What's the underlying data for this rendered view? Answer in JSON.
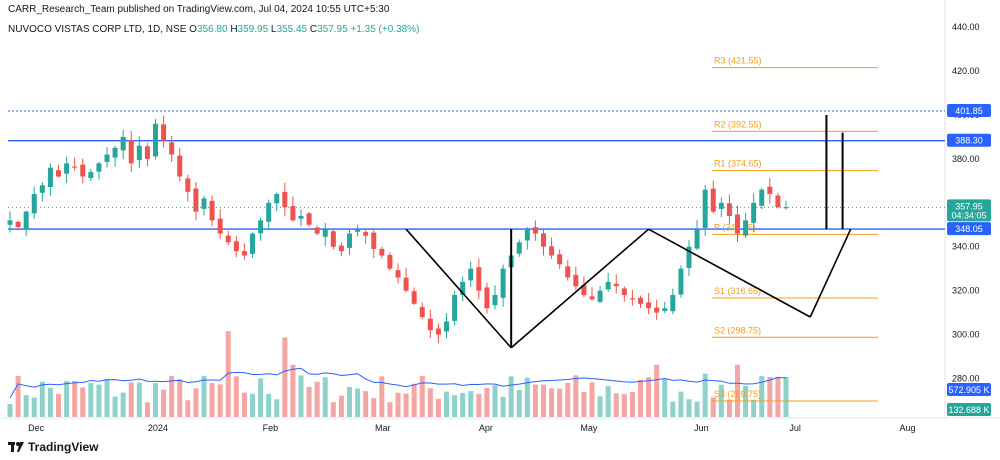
{
  "header": {
    "published": "CARR_Research_Team published on TradingView.com, Jul 04, 2024 10:55 UTC+5:30",
    "symbol": "NUVOCO VISTAS CORP LTD, 1D, NSE",
    "o_label": "O",
    "o_value": "356.80",
    "h_label": "H",
    "h_value": "359.95",
    "l_label": "L",
    "l_value": "355.45",
    "c_label": "C",
    "c_value": "357.95",
    "change": "+1.35 (+0.38%)"
  },
  "footer": {
    "brand": "TradingView"
  },
  "colors": {
    "up": "#26a69a",
    "down": "#ef5350",
    "vol_up": "#8fd2cb",
    "vol_down": "#f4a6a4",
    "blue": "#2962ff",
    "orange": "#f59c1a",
    "ma": "#2962ff"
  },
  "chart_data": {
    "type": "candlestick",
    "y_axis": {
      "ticks": [
        440,
        420,
        400,
        380,
        360,
        340,
        320,
        300,
        280
      ],
      "range": [
        262,
        446
      ]
    },
    "x_axis": {
      "labels": [
        {
          "text": "Dec",
          "x": 0.03
        },
        {
          "text": "2024",
          "x": 0.16
        },
        {
          "text": "Feb",
          "x": 0.28
        },
        {
          "text": "Mar",
          "x": 0.4
        },
        {
          "text": "Apr",
          "x": 0.51
        },
        {
          "text": "May",
          "x": 0.62
        },
        {
          "text": "Jun",
          "x": 0.74
        },
        {
          "text": "Jul",
          "x": 0.84
        },
        {
          "text": "Aug",
          "x": 0.96
        }
      ]
    },
    "price_path": [
      352,
      349,
      356,
      364,
      368,
      376,
      372,
      378,
      376,
      372,
      374,
      378,
      382,
      385,
      390,
      378,
      386,
      380,
      396,
      388,
      382,
      372,
      365,
      356,
      362,
      352,
      346,
      342,
      338,
      336,
      346,
      352,
      360,
      364,
      358,
      352,
      354,
      350,
      346,
      348,
      340,
      338,
      346,
      348,
      345,
      339,
      336,
      330,
      326,
      320,
      314,
      308,
      302,
      300,
      306,
      318,
      324,
      330,
      320,
      312,
      318,
      330,
      336,
      342,
      348,
      346,
      340,
      336,
      332,
      326,
      322,
      318,
      316,
      320,
      324,
      322,
      318,
      316,
      314,
      312,
      310,
      312,
      318,
      330,
      340,
      348,
      366,
      356,
      360,
      354,
      346,
      352,
      360,
      366,
      364,
      358,
      358
    ],
    "current_price": 357.95,
    "current_label": "357.95",
    "countdown": "04:34:05",
    "h_lines": [
      {
        "value": 401.85,
        "label": "401.85",
        "style": "dotted"
      },
      {
        "value": 388.3,
        "label": "388.30",
        "style": "solid"
      },
      {
        "value": 348.05,
        "label": "348.05",
        "style": "solid"
      }
    ],
    "pivots": [
      {
        "label": "R3 (421.55)",
        "value": 421.55
      },
      {
        "label": "R2 (392.55)",
        "value": 392.55
      },
      {
        "label": "R1 (374.65)",
        "value": 374.65
      },
      {
        "label": "P (345.65)",
        "value": 345.65
      },
      {
        "label": "S1 (316.65)",
        "value": 316.65
      },
      {
        "label": "S2 (298.75)",
        "value": 298.75
      },
      {
        "label": "S3 (269.75)",
        "value": 269.75
      }
    ],
    "pattern_points": [
      {
        "i": 49,
        "v": 348
      },
      {
        "i": 62,
        "v": 294
      },
      {
        "i": 79,
        "v": 348
      },
      {
        "i": 99,
        "v": 308
      },
      {
        "i": 104,
        "v": 348
      }
    ],
    "neckline_marks": [
      {
        "i": 62,
        "from": 294,
        "to": 348
      },
      {
        "i": 101,
        "from": 348,
        "to": 400
      },
      {
        "i": 103,
        "from": 348,
        "to": 392
      }
    ],
    "volume_badges": [
      {
        "label": "572.905 K",
        "color": "#2962ff"
      },
      {
        "label": "132.688 K",
        "color": "#26a69a"
      }
    ]
  }
}
